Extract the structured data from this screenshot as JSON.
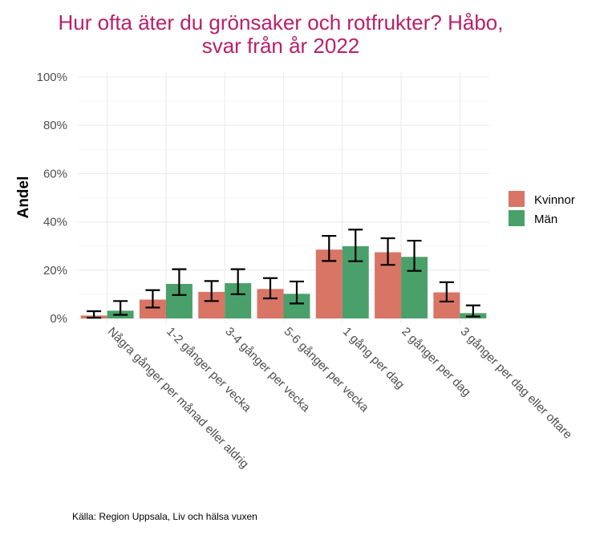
{
  "chart_data": {
    "type": "bar",
    "title_lines": [
      "Hur ofta äter du grönsaker och rotfrukter? Håbo,",
      "svar från år 2022"
    ],
    "xlabel": "",
    "ylabel": "Andel",
    "ylim": [
      0,
      100
    ],
    "yticks": [
      "0%",
      "20%",
      "40%",
      "60%",
      "80%",
      "100%"
    ],
    "ytick_values": [
      0,
      20,
      40,
      60,
      80,
      100
    ],
    "categories": [
      "Några gånger per månad eller aldrig",
      "1-2 gånger per vecka",
      "3-4 gånger per vecka",
      "5-6 gånger per vecka",
      "1 gång per dag",
      "2 gånger per dag",
      "3 gånger per dag eller oftare"
    ],
    "series": [
      {
        "name": "Kvinnor",
        "color": "#d87565",
        "values": [
          1.2,
          7.8,
          11.0,
          12.2,
          28.5,
          27.4,
          10.8
        ],
        "err_low": [
          0.3,
          4.5,
          7.2,
          8.3,
          23.8,
          22.2,
          7.0
        ],
        "err_high": [
          3.0,
          11.7,
          15.5,
          16.7,
          34.2,
          33.2,
          15.0
        ]
      },
      {
        "name": "Män",
        "color": "#4aa06b",
        "values": [
          3.2,
          14.3,
          14.6,
          10.2,
          29.9,
          25.5,
          2.2
        ],
        "err_low": [
          1.5,
          9.7,
          10.0,
          6.2,
          23.7,
          19.7,
          0.8
        ],
        "err_high": [
          7.2,
          20.4,
          20.4,
          15.3,
          36.8,
          32.2,
          5.4
        ]
      }
    ],
    "grid": true,
    "legend_position": "right"
  },
  "source": "Källa: Region Uppsala, Liv och hälsa vuxen"
}
